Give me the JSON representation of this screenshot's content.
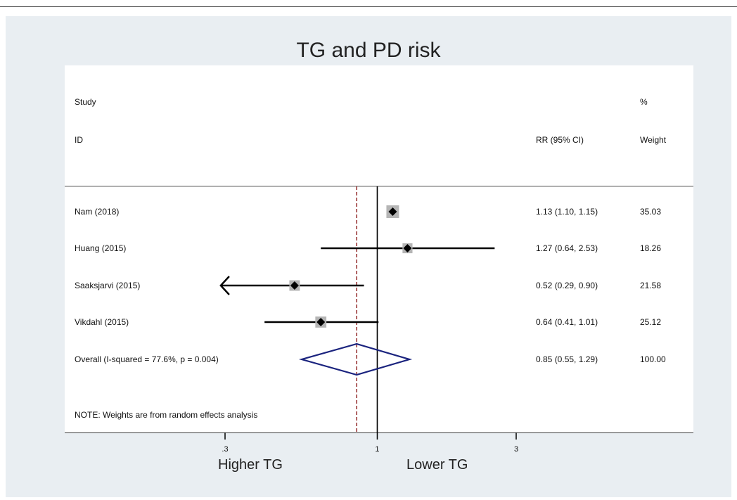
{
  "chart_data": {
    "type": "forest",
    "title": "TG and PD risk",
    "header": {
      "study_line1": "Study",
      "study_line2": "ID",
      "estimate_header": "RR (95% CI)",
      "weight_line1": "%",
      "weight_line2": "Weight"
    },
    "x_scale": "log",
    "xlim": [
      0.18,
      8.5
    ],
    "x_ticks": [
      {
        "value": 0.3,
        "label": ".3"
      },
      {
        "value": 1,
        "label": "1"
      },
      {
        "value": 3,
        "label": "3"
      }
    ],
    "reference_line": 1,
    "overall_line": 0.85,
    "studies": [
      {
        "id": "Nam (2018)",
        "rr": 1.13,
        "lower": 1.1,
        "upper": 1.15,
        "ci_text": "1.13 (1.10, 1.15)",
        "weight": 35.03,
        "weight_text": "35.03",
        "arrow_left": false
      },
      {
        "id": "Huang  (2015)",
        "rr": 1.27,
        "lower": 0.64,
        "upper": 2.53,
        "ci_text": "1.27 (0.64, 2.53)",
        "weight": 18.26,
        "weight_text": "18.26",
        "arrow_left": false
      },
      {
        "id": "Saaksjarvi   (2015)",
        "rr": 0.52,
        "lower": 0.29,
        "upper": 0.9,
        "ci_text": "0.52 (0.29, 0.90)",
        "weight": 21.58,
        "weight_text": "21.58",
        "arrow_left": true
      },
      {
        "id": "Vikdahl  (2015)",
        "rr": 0.64,
        "lower": 0.41,
        "upper": 1.01,
        "ci_text": "0.64 (0.41, 1.01)",
        "weight": 25.12,
        "weight_text": "25.12",
        "arrow_left": false
      }
    ],
    "overall": {
      "id": "Overall  (I-squared = 77.6%, p = 0.004)",
      "rr": 0.85,
      "lower": 0.55,
      "upper": 1.29,
      "ci_text": "0.85 (0.55, 1.29)",
      "weight_text": "100.00"
    },
    "note": "NOTE: Weights are from random effects analysis",
    "bottom_labels": {
      "left": "Higher TG",
      "right": "Lower TG"
    },
    "colors": {
      "background": "#e9eef2",
      "panel": "#ffffff",
      "diamond": "#1a237e",
      "overall_line": "#8b1a1a",
      "weight_box": "#b5b5b5",
      "line": "#000000"
    }
  }
}
